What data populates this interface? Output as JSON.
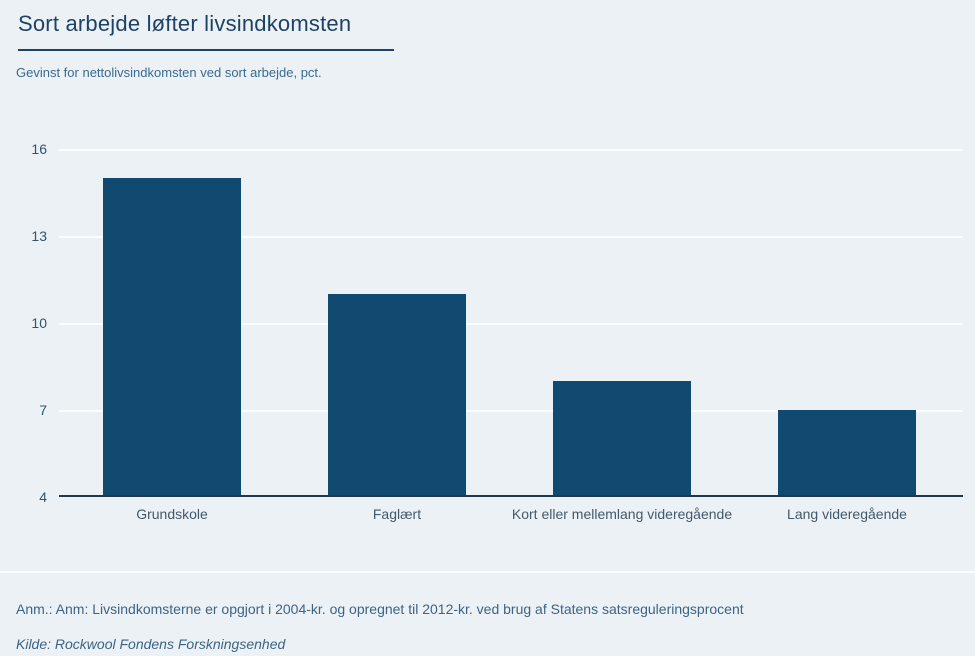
{
  "header": {
    "title": "Sort arbejde løfter livsindkomsten",
    "subtitle": "Gevinst for nettolivsindkomsten ved sort arbejde, pct."
  },
  "footer": {
    "note": "Anm.: Anm: Livsindkomsterne er opgjort i 2004-kr. og opregnet til 2012-kr. ved brug af Statens satsreguleringsprocent",
    "source": "Kilde: Rockwool Fondens Forskningsenhed"
  },
  "colors": {
    "background": "#ecf1f5",
    "bar_fill": "#114a70",
    "title_text": "#1d4265",
    "subtitle_text": "#3a6a8f",
    "axis_tick_text": "#31536e",
    "category_text": "#42596d",
    "gridline": "#fafcfe",
    "baseline": "#22384a",
    "note_text": "#3c6486"
  },
  "chart_data": {
    "type": "bar",
    "title": "Sort arbejde løfter livsindkomsten",
    "subtitle": "Gevinst for nettolivsindkomsten ved sort arbejde, pct.",
    "categories": [
      "Grundskole",
      "Faglært",
      "Kort eller mellemlang videregående",
      "Lang videregående"
    ],
    "values": [
      15,
      11,
      8,
      7
    ],
    "xlabel": "",
    "ylabel": "Gevinst for nettolivsindkomsten ved sort arbejde, pct.",
    "unit": "pct.",
    "ylim": [
      4,
      16
    ],
    "yticks": [
      4,
      7,
      10,
      13,
      16
    ],
    "grid": true,
    "legend": false
  }
}
